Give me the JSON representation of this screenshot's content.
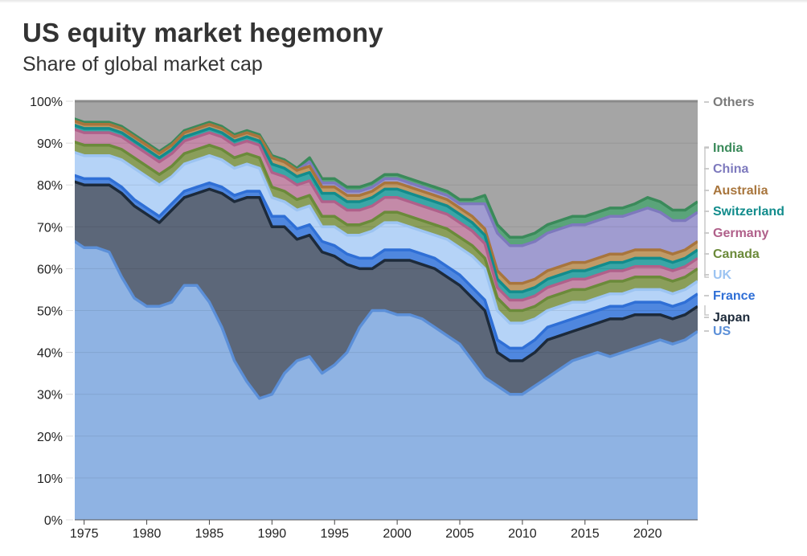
{
  "header": {
    "title": "US equity market hegemony",
    "subtitle": "Share of global market cap"
  },
  "chart_data": {
    "type": "area",
    "stacked": true,
    "title": "US equity market hegemony",
    "subtitle": "Share of global market cap",
    "xlabel": "",
    "ylabel": "",
    "xlim": [
      1974.25,
      2024
    ],
    "ylim": [
      0,
      100
    ],
    "y_ticks": [
      "0%",
      "10%",
      "20%",
      "30%",
      "40%",
      "50%",
      "60%",
      "70%",
      "80%",
      "90%",
      "100%"
    ],
    "x_ticks": [
      "1975",
      "1980",
      "1985",
      "1990",
      "1995",
      "2000",
      "2005",
      "2010",
      "2015",
      "2020"
    ],
    "grid": true,
    "legend_placement": "right (inline labels)",
    "x": [
      1974,
      1975,
      1976,
      1977,
      1978,
      1979,
      1980,
      1981,
      1982,
      1983,
      1984,
      1985,
      1986,
      1987,
      1988,
      1989,
      1990,
      1991,
      1992,
      1993,
      1994,
      1995,
      1996,
      1997,
      1998,
      1999,
      2000,
      2001,
      2002,
      2003,
      2004,
      2005,
      2006,
      2007,
      2008,
      2009,
      2010,
      2011,
      2012,
      2013,
      2014,
      2015,
      2016,
      2017,
      2018,
      2019,
      2020,
      2021,
      2022,
      2023,
      2024
    ],
    "series": [
      {
        "name": "US",
        "color": "#8fb3e3",
        "line": "#5b8fd8",
        "values": [
          67,
          65,
          65,
          64,
          58,
          53,
          51,
          51,
          52,
          56,
          56,
          52,
          46,
          38,
          33,
          29,
          30,
          35,
          38,
          39,
          35,
          37,
          40,
          46,
          50,
          50,
          49,
          49,
          48,
          46,
          44,
          42,
          38,
          34,
          32,
          30,
          30,
          32,
          34,
          36,
          38,
          39,
          40,
          39,
          40,
          41,
          42,
          43,
          42,
          43,
          45
        ]
      },
      {
        "name": "Japan",
        "color": "#5c6779",
        "line": "#1d2a3a",
        "values": [
          14,
          15,
          15,
          16,
          20,
          22,
          22,
          20,
          22,
          21,
          22,
          27,
          32,
          38,
          44,
          48,
          40,
          35,
          29,
          29,
          29,
          26,
          21,
          14,
          10,
          12,
          13,
          13,
          13,
          14,
          14,
          14,
          15,
          16,
          8,
          8,
          8,
          8,
          9,
          8,
          7,
          7,
          7,
          9,
          8,
          8,
          7,
          6,
          6,
          6,
          6
        ]
      },
      {
        "name": "France",
        "color": "#4f87df",
        "line": "#2f6fd6",
        "values": [
          1.5,
          1.5,
          1.5,
          1.5,
          1.5,
          1.5,
          1.5,
          1.5,
          1.5,
          1.5,
          1.5,
          1.5,
          1.5,
          1.5,
          1.5,
          1.5,
          2.5,
          2.5,
          2.5,
          2.5,
          2.5,
          2.5,
          2.5,
          2.5,
          2.5,
          2.5,
          2.5,
          2.5,
          2.5,
          2.5,
          2.5,
          2.5,
          2.5,
          2.5,
          3,
          3,
          3,
          3,
          3,
          3,
          3,
          3,
          3,
          3,
          3,
          3,
          3,
          3,
          3,
          3,
          3
        ]
      },
      {
        "name": "UK",
        "color": "#b5d3f7",
        "line": "#9cc4f2",
        "values": [
          5.5,
          5.5,
          5.5,
          5.5,
          6.5,
          7.5,
          7.5,
          7.5,
          6.5,
          6.5,
          6.5,
          6.5,
          6.5,
          6.5,
          6.5,
          5.5,
          4.5,
          3.5,
          4.5,
          4.5,
          3.5,
          4.5,
          4.5,
          5.5,
          6.5,
          6.5,
          6.5,
          5.5,
          5.5,
          5.5,
          6.5,
          6.5,
          7.5,
          7.5,
          7,
          6,
          6,
          5,
          4,
          4,
          4,
          3,
          3,
          3,
          3,
          3,
          3,
          3,
          3,
          3,
          3
        ]
      },
      {
        "name": "Canada",
        "color": "#8a9e5a",
        "line": "#6b8a3a",
        "values": [
          2.5,
          2.5,
          2.5,
          2.5,
          2.5,
          2.5,
          2.5,
          2.5,
          2.5,
          2.5,
          2.5,
          2.5,
          2.5,
          2.5,
          2.5,
          2.5,
          2.5,
          2.5,
          2.5,
          2.5,
          2.5,
          2.5,
          2.5,
          2.5,
          2.5,
          2.5,
          2.5,
          2.5,
          2.5,
          2.5,
          2.5,
          2.5,
          2.5,
          2.5,
          3,
          3,
          3,
          3,
          3,
          3,
          3,
          3,
          3,
          3,
          3,
          3,
          3,
          3,
          3,
          3,
          3
        ]
      },
      {
        "name": "Germany",
        "color": "#c48aa8",
        "line": "#b0608a",
        "values": [
          3,
          3,
          3,
          3,
          3,
          3,
          3,
          3,
          3,
          3,
          3,
          3,
          3,
          3,
          3,
          3,
          3.5,
          3.5,
          3.5,
          3.5,
          3.5,
          3.5,
          3.5,
          3.5,
          3.5,
          3.5,
          3.5,
          3.5,
          3.5,
          3.5,
          3.5,
          3.5,
          3.5,
          3.5,
          2.5,
          2.5,
          2.5,
          2.5,
          2.5,
          2.5,
          2.5,
          2.5,
          2.5,
          2.5,
          2.5,
          2.5,
          2.5,
          2.5,
          2.5,
          2.5,
          2.5
        ]
      },
      {
        "name": "Switzerland",
        "color": "#3aa6a6",
        "line": "#128c8c",
        "values": [
          1,
          1,
          1,
          1,
          1,
          1,
          1,
          1,
          1,
          1,
          1,
          1,
          1,
          1,
          1,
          1,
          2,
          2,
          2,
          2,
          2,
          2,
          2,
          2,
          2,
          2,
          2,
          2,
          2,
          2,
          2,
          2,
          2,
          2,
          2,
          2,
          2,
          2,
          2,
          2,
          2,
          2,
          2,
          2,
          2,
          2,
          2,
          2,
          2,
          2,
          2
        ]
      },
      {
        "name": "Australia",
        "color": "#c09a66",
        "line": "#a8753c",
        "values": [
          1,
          1,
          1,
          1,
          1,
          1,
          1,
          1,
          1,
          1,
          1,
          1,
          1,
          1,
          1,
          1,
          1.5,
          1.5,
          1.5,
          1.5,
          1.5,
          1.5,
          1.5,
          1.5,
          1.5,
          1.5,
          1.5,
          1.5,
          1.5,
          1.5,
          1.5,
          1.5,
          1.5,
          1.5,
          2,
          2,
          2,
          2,
          2,
          2,
          2,
          2,
          2,
          2,
          2,
          2,
          2,
          2,
          2,
          2,
          2
        ]
      },
      {
        "name": "China",
        "color": "#a09cd0",
        "line": "#7d79bd",
        "values": [
          0,
          0,
          0,
          0,
          0,
          0,
          0,
          0,
          0,
          0,
          0,
          0,
          0,
          0,
          0,
          0,
          0,
          0,
          0,
          1,
          1,
          1,
          1,
          1,
          1,
          1,
          1,
          1,
          1,
          1,
          1,
          1,
          3,
          6,
          9,
          9,
          9,
          9,
          9,
          9,
          9,
          9,
          9,
          9,
          9,
          9,
          10,
          9,
          8,
          7,
          7
        ]
      },
      {
        "name": "India",
        "color": "#5aa47a",
        "line": "#3a8a5a",
        "values": [
          0.5,
          0.5,
          0.5,
          0.5,
          0.5,
          0.5,
          0.5,
          0.5,
          0.5,
          0.5,
          0.5,
          0.5,
          0.5,
          0.5,
          0.5,
          0.5,
          0.5,
          0.5,
          0.5,
          1,
          1,
          1,
          1,
          1,
          1,
          1,
          1,
          1,
          1,
          1,
          1,
          1,
          1,
          2,
          2,
          2,
          2,
          2,
          2,
          2,
          2,
          2,
          2,
          2,
          2,
          2,
          2.5,
          2.5,
          2.5,
          2.5,
          2.5
        ]
      },
      {
        "name": "Others",
        "color": "#a5a5a5",
        "line": "#8a8a8a",
        "values": "remainder to 100%"
      }
    ],
    "legend": [
      {
        "label": "Others",
        "color": "#7a7a7a"
      },
      {
        "label": "India",
        "color": "#3a8a5a"
      },
      {
        "label": "China",
        "color": "#7d79bd"
      },
      {
        "label": "Australia",
        "color": "#a8753c"
      },
      {
        "label": "Switzerland",
        "color": "#128c8c"
      },
      {
        "label": "Germany",
        "color": "#b0608a"
      },
      {
        "label": "Canada",
        "color": "#6b8a3a"
      },
      {
        "label": "UK",
        "color": "#9cc4f2"
      },
      {
        "label": "France",
        "color": "#2f6fd6"
      },
      {
        "label": "Japan",
        "color": "#1d2a3a"
      },
      {
        "label": "US",
        "color": "#5b8fd8"
      }
    ]
  }
}
